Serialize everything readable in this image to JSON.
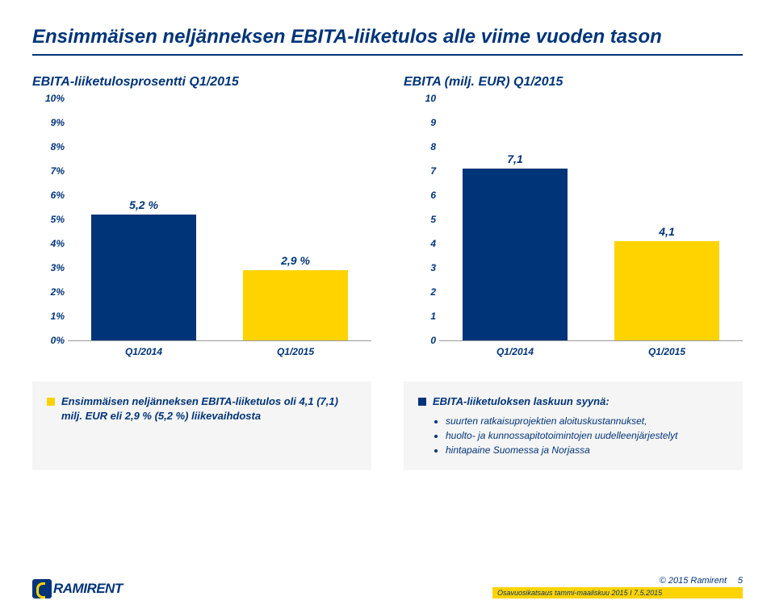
{
  "colors": {
    "brand_blue": "#003478",
    "brand_yellow": "#ffd300",
    "note_bg": "#f5f5f5",
    "page_bg": "#ffffff"
  },
  "title": "Ensimmäisen neljänneksen EBITA-liiketulos alle viime vuoden tason",
  "title_fontsize": 24,
  "left_chart": {
    "title": "EBITA-liiketulosprosentti Q1/2015",
    "type": "bar",
    "ylim_pct": [
      0,
      10
    ],
    "y_ticks": [
      "0%",
      "1%",
      "2%",
      "3%",
      "4%",
      "5%",
      "6%",
      "7%",
      "8%",
      "9%",
      "10%"
    ],
    "categories": [
      "Q1/2014",
      "Q1/2015"
    ],
    "values_pct": [
      5.2,
      2.9
    ],
    "value_labels": [
      "5,2 %",
      "2,9 %"
    ],
    "bar_colors": [
      "#003478",
      "#ffd300"
    ],
    "bar_width": 0.82,
    "label_fontsize": 12
  },
  "right_chart": {
    "title": "EBITA (milj. EUR) Q1/2015",
    "type": "bar",
    "ylim": [
      0,
      10
    ],
    "y_ticks": [
      "0",
      "1",
      "2",
      "3",
      "4",
      "5",
      "6",
      "7",
      "8",
      "9",
      "10"
    ],
    "categories": [
      "Q1/2014",
      "Q1/2015"
    ],
    "values": [
      7.1,
      4.1
    ],
    "value_labels": [
      "7,1",
      "4,1"
    ],
    "bar_colors": [
      "#003478",
      "#ffd300"
    ],
    "bar_width": 0.82,
    "label_fontsize": 12
  },
  "left_note": {
    "text": "Ensimmäisen neljänneksen EBITA-liiketulos oli 4,1 (7,1) milj. EUR eli 2,9 % (5,2 %) liikevaihdosta"
  },
  "right_note": {
    "heading": "EBITA-liiketuloksen laskuun syynä:",
    "items": [
      "suurten ratkaisuprojektien aloituskustannukset,",
      "huolto- ja kunnossapitotoimintojen uudelleenjärjestelyt",
      "hintapaine Suomessa ja Norjassa"
    ]
  },
  "footer": {
    "logo_text": "RAMIRENT",
    "copyright": "© 2015 Ramirent",
    "page_number": "5",
    "yellow_bar_text": "Osavuosikatsaus tammi-maaliskuu 2015 I 7.5.2015"
  }
}
